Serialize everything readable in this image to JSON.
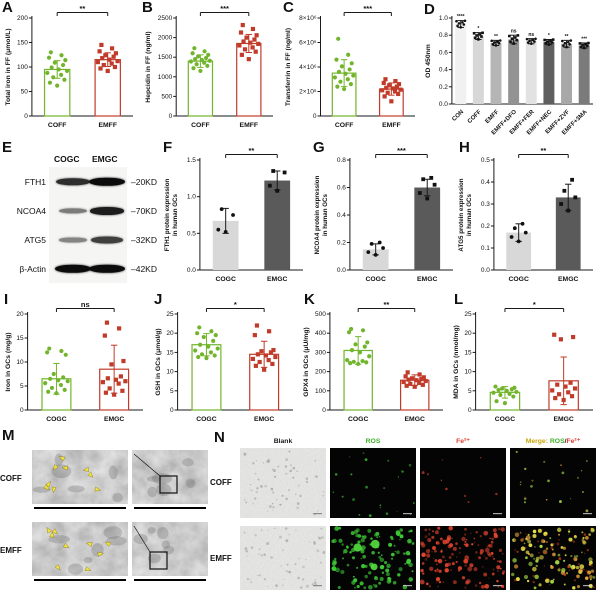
{
  "panels": {
    "a": "A",
    "b": "B",
    "c": "C",
    "d": "D",
    "e": "E",
    "f": "F",
    "g": "G",
    "h": "H",
    "i": "I",
    "j": "J",
    "k": "K",
    "l": "L",
    "m": "M",
    "n": "N"
  },
  "charts": {
    "A": {
      "type": "scatterbar",
      "ylabel": "Total iron in FF (μmol/L)",
      "categories": [
        "COFF",
        "EMFF"
      ],
      "means": [
        95,
        115
      ],
      "errors": [
        18,
        14
      ],
      "points": [
        [
          62,
          68,
          74,
          79,
          84,
          88,
          92,
          95,
          99,
          104,
          109,
          114,
          119,
          124,
          130
        ],
        [
          92,
          97,
          100,
          104,
          107,
          110,
          112,
          115,
          118,
          121,
          124,
          128,
          132,
          138,
          145
        ]
      ],
      "colors": [
        "#72b52c",
        "#c13b2a"
      ],
      "ylim": [
        0,
        200
      ],
      "ticks": [
        0,
        50,
        100,
        150,
        200
      ],
      "tick_labels": [
        "0",
        "50",
        "100",
        "150",
        "200"
      ],
      "sig": "**"
    },
    "B": {
      "type": "scatterbar",
      "ylabel": "Hepcidin in FF (ng/ml)",
      "categories": [
        "COFF",
        "EMFF"
      ],
      "means": [
        1400,
        1850
      ],
      "errors": [
        160,
        230
      ],
      "points": [
        [
          1150,
          1220,
          1280,
          1320,
          1360,
          1390,
          1410,
          1430,
          1450,
          1480,
          1520,
          1560,
          1600,
          1650,
          1730
        ],
        [
          1450,
          1560,
          1640,
          1700,
          1750,
          1800,
          1840,
          1870,
          1900,
          1950,
          2000,
          2060,
          2130,
          2220,
          2320
        ]
      ],
      "colors": [
        "#72b52c",
        "#c13b2a"
      ],
      "ylim": [
        0,
        2500
      ],
      "ticks": [
        0,
        500,
        1000,
        1500,
        2000,
        2500
      ],
      "tick_labels": [
        "0",
        "500",
        "1000",
        "1500",
        "2000",
        "2500"
      ],
      "sig": "***"
    },
    "C": {
      "type": "scatterbar",
      "ylabel": "Transferrin in FF (ng/ml)",
      "categories": [
        "COFF",
        "EMFF"
      ],
      "means": [
        3500000,
        2200000
      ],
      "errors": [
        1100000,
        500000
      ],
      "points": [
        [
          2200000,
          2400000,
          2600000,
          2800000,
          3000000,
          3150000,
          3300000,
          3450000,
          3600000,
          3800000,
          4050000,
          4300000,
          4600000,
          5000000,
          6300000
        ],
        [
          1200000,
          1600000,
          1800000,
          1900000,
          2000000,
          2100000,
          2150000,
          2250000,
          2300000,
          2400000,
          2500000,
          2600000,
          2700000,
          2850000,
          3000000
        ]
      ],
      "colors": [
        "#72b52c",
        "#c13b2a"
      ],
      "ylim": [
        0,
        8000000
      ],
      "ticks": [
        0,
        2000000,
        4000000,
        6000000,
        8000000
      ],
      "tick_labels": [
        "0",
        "2×10⁶",
        "4×10⁶",
        "6×10⁶",
        "8×10⁶"
      ],
      "sig": "***"
    },
    "D": {
      "type": "bar",
      "ylabel": "OD 450nm",
      "categories": [
        "CON",
        "COFF",
        "EMFF",
        "EMFF+DFO",
        "EMFF+FER",
        "EMFF+NEC",
        "EMFF+ZVF",
        "EMFF+3MA"
      ],
      "means": [
        0.93,
        0.79,
        0.71,
        0.75,
        0.73,
        0.72,
        0.7,
        0.68
      ],
      "errors": [
        0.04,
        0.04,
        0.03,
        0.05,
        0.03,
        0.03,
        0.04,
        0.03
      ],
      "sig_each": [
        "****",
        "*",
        "**",
        "ns",
        "ns",
        "*",
        "**",
        "***"
      ],
      "bar_fills": [
        "#f1f1f1",
        "#d7d7d7",
        "#b5b5b5",
        "#939393",
        "#e2e2e2",
        "#5f5f5f",
        "#a8a8a8",
        "#7b7b7b"
      ],
      "ylim": [
        0,
        1.0
      ],
      "ticks": [
        0,
        0.2,
        0.4,
        0.6,
        0.8,
        1.0
      ],
      "tick_labels": [
        "0.0",
        "0.2",
        "0.4",
        "0.6",
        "0.8",
        "1.0"
      ],
      "rotate_x": true
    },
    "F": {
      "type": "bar",
      "ylabel": [
        "FTH1 protein expression",
        "in human GCs"
      ],
      "categories": [
        "COGC",
        "EMGC"
      ],
      "means": [
        0.67,
        1.22
      ],
      "errors": [
        0.17,
        0.13
      ],
      "points": [
        [
          0.52,
          0.55,
          0.75,
          0.83
        ],
        [
          1.08,
          1.15,
          1.33,
          1.35
        ]
      ],
      "bar_fills": [
        "#d8d8d8",
        "#5a5a5a"
      ],
      "ylim": [
        0,
        1.5
      ],
      "ticks": [
        0,
        0.5,
        1.0,
        1.5
      ],
      "tick_labels": [
        "0.0",
        "0.5",
        "1.0",
        "1.5"
      ],
      "sig": "**"
    },
    "G": {
      "type": "bar",
      "ylabel": [
        "NCOA4 protein expression",
        "in human GCs"
      ],
      "categories": [
        "COGC",
        "EMGC"
      ],
      "means": [
        0.15,
        0.6
      ],
      "errors": [
        0.04,
        0.06
      ],
      "points": [
        [
          0.11,
          0.13,
          0.16,
          0.19,
          0.2
        ],
        [
          0.52,
          0.56,
          0.62,
          0.66,
          0.67
        ]
      ],
      "bar_fills": [
        "#d8d8d8",
        "#5a5a5a"
      ],
      "ylim": [
        0,
        0.8
      ],
      "ticks": [
        0,
        0.2,
        0.4,
        0.6,
        0.8
      ],
      "tick_labels": [
        "0.0",
        "0.2",
        "0.4",
        "0.6",
        "0.8"
      ],
      "sig": "***"
    },
    "H": {
      "type": "bar",
      "ylabel": [
        "ATG5 protein expression",
        "in human GCs"
      ],
      "categories": [
        "COGC",
        "EMGC"
      ],
      "means": [
        0.17,
        0.33
      ],
      "errors": [
        0.04,
        0.06
      ],
      "points": [
        [
          0.13,
          0.15,
          0.17,
          0.19,
          0.21
        ],
        [
          0.27,
          0.3,
          0.33,
          0.36,
          0.41
        ]
      ],
      "bar_fills": [
        "#d8d8d8",
        "#5a5a5a"
      ],
      "ylim": [
        0,
        0.5
      ],
      "ticks": [
        0,
        0.1,
        0.2,
        0.3,
        0.4,
        0.5
      ],
      "tick_labels": [
        "0.0",
        "0.1",
        "0.2",
        "0.3",
        "0.4",
        "0.5"
      ],
      "sig": "**"
    },
    "I": {
      "type": "scatterbar",
      "ylabel": "Iron in GCs (mg/g)",
      "categories": [
        "COGC",
        "EMGC"
      ],
      "means": [
        6.5,
        8.5
      ],
      "errors": [
        3.2,
        5.0
      ],
      "points": [
        [
          3.5,
          3.8,
          4.2,
          4.6,
          5.2,
          5.6,
          6.0,
          6.2,
          6.5,
          6.8,
          7.5,
          11.5,
          12.0,
          12.3,
          12.8
        ],
        [
          3.2,
          3.6,
          4.0,
          4.5,
          5.5,
          5.8,
          6.0,
          6.3,
          6.6,
          7.0,
          9.5,
          10.2,
          15.5,
          17.0,
          18.2
        ]
      ],
      "colors": [
        "#72b52c",
        "#c13b2a"
      ],
      "ylim": [
        0,
        20
      ],
      "ticks": [
        0,
        5,
        10,
        15,
        20
      ],
      "tick_labels": [
        "0",
        "5",
        "10",
        "15",
        "20"
      ],
      "sig": "ns"
    },
    "J": {
      "type": "scatterbar",
      "ylabel": "GSH in GCs (μmol/g)",
      "categories": [
        "COGC",
        "EMGC"
      ],
      "means": [
        17,
        14.5
      ],
      "errors": [
        2.9,
        3.4
      ],
      "points": [
        [
          13.5,
          13.8,
          14.2,
          14.5,
          15,
          15.5,
          16,
          16.5,
          17,
          18,
          19,
          19.5,
          20,
          20.5,
          21.5
        ],
        [
          10.5,
          11.5,
          12,
          12.5,
          13,
          13.3,
          13.8,
          14.2,
          14.5,
          15,
          15.3,
          15.6,
          19.5,
          20.5,
          22
        ]
      ],
      "colors": [
        "#72b52c",
        "#c13b2a"
      ],
      "ylim": [
        0,
        25
      ],
      "ticks": [
        0,
        5,
        10,
        15,
        20,
        25
      ],
      "tick_labels": [
        "0",
        "5",
        "10",
        "15",
        "20",
        "25"
      ],
      "sig": "*"
    },
    "K": {
      "type": "scatterbar",
      "ylabel": "GPX4 in GCs (μU/mg)",
      "categories": [
        "COGC",
        "EMGC"
      ],
      "means": [
        310,
        155
      ],
      "errors": [
        72,
        28
      ],
      "points": [
        [
          240,
          244,
          248,
          251,
          255,
          260,
          280,
          300,
          312,
          330,
          342,
          352,
          405,
          415,
          422
        ],
        [
          121,
          126,
          131,
          136,
          141,
          146,
          151,
          155,
          158,
          161,
          165,
          170,
          175,
          185,
          196
        ]
      ],
      "colors": [
        "#72b52c",
        "#c13b2a"
      ],
      "ylim": [
        0,
        500
      ],
      "ticks": [
        0,
        100,
        200,
        300,
        400,
        500
      ],
      "tick_labels": [
        "0",
        "100",
        "200",
        "300",
        "400",
        "500"
      ],
      "sig": "**"
    },
    "L": {
      "type": "scatterbar",
      "ylabel": "MDA in GCs (nmol/mg)",
      "categories": [
        "COGC",
        "EMGC"
      ],
      "means": [
        4.6,
        7.6
      ],
      "errors": [
        1.5,
        6.2
      ],
      "points": [
        [
          1.8,
          2.3,
          3.5,
          3.9,
          4.2,
          4.5,
          4.7,
          5.0,
          5.2,
          5.4,
          5.6,
          5.8,
          6.1
        ],
        [
          2.6,
          3.1,
          3.6,
          4.1,
          4.6,
          5.1,
          5.6,
          6.1,
          6.6,
          7.1,
          18.4,
          19.0,
          19.6
        ]
      ],
      "colors": [
        "#72b52c",
        "#c13b2a"
      ],
      "ylim": [
        0,
        25
      ],
      "ticks": [
        0,
        5,
        10,
        15,
        20,
        25
      ],
      "tick_labels": [
        "0",
        "5",
        "10",
        "15",
        "20",
        "25"
      ],
      "sig": "*"
    }
  },
  "western": {
    "lanes": [
      "COGC",
      "EMGC"
    ],
    "rows": [
      {
        "protein": "FTH1",
        "kd": "–20KD",
        "intensity": [
          0.8,
          1.0
        ]
      },
      {
        "protein": "NCOA4",
        "kd": "–70KD",
        "intensity": [
          0.35,
          0.9
        ]
      },
      {
        "protein": "ATG5",
        "kd": "–32KD",
        "intensity": [
          0.3,
          0.7
        ]
      },
      {
        "protein": "β-Actin",
        "kd": "–42KD",
        "intensity": [
          1.0,
          1.0
        ]
      }
    ]
  },
  "tem": {
    "rows": [
      "COFF",
      "EMFF"
    ],
    "arrow_color": "#f3e23b"
  },
  "fluor": {
    "rows": [
      "COFF",
      "EMFF"
    ],
    "headers": [
      {
        "segments": [
          {
            "text": "Blank",
            "color": "#1a1a1a"
          }
        ]
      },
      {
        "segments": [
          {
            "text": "ROS",
            "color": "#3fae29"
          }
        ]
      },
      {
        "segments": [
          {
            "text": "Fe²⁺",
            "color": "#e03a2f"
          }
        ]
      },
      {
        "segments": [
          {
            "text": "Merge:",
            "color": "#c9a50a"
          },
          {
            "text": " ROS",
            "color": "#3fae29"
          },
          {
            "text": "/",
            "color": "#222222"
          },
          {
            "text": "Fe²⁺",
            "color": "#e03a2f"
          }
        ]
      }
    ],
    "densities": {
      "ros": [
        22,
        115
      ],
      "fe": [
        9,
        105
      ],
      "merge": [
        20,
        115
      ]
    },
    "colors": {
      "ros": "#3ecb37",
      "fe": "#e2442e",
      "merge": [
        "#e6e049",
        "#f0a83c",
        "#a7d944"
      ]
    }
  }
}
